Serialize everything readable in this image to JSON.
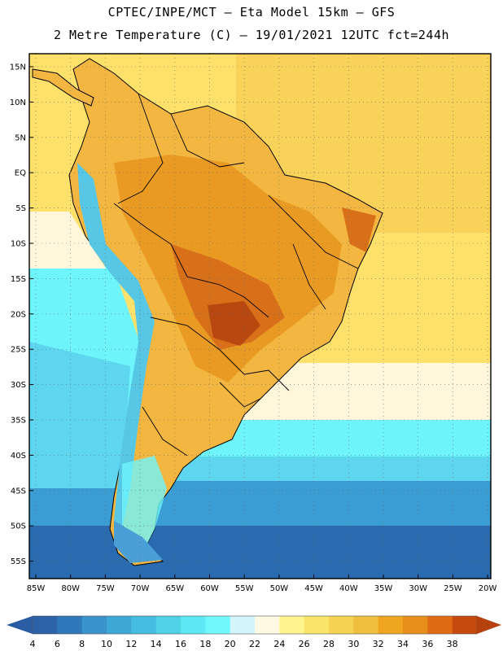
{
  "header": {
    "title_line1": "CPTEC/INPE/MCT –  Eta Model 15km – GFS",
    "title_line2": "2 Metre Temperature (C) – 19/01/2021 12UTC fct=244h"
  },
  "map": {
    "lat_labels": [
      "15N",
      "10N",
      "5N",
      "EQ",
      "5S",
      "10S",
      "15S",
      "20S",
      "25S",
      "30S",
      "35S",
      "40S",
      "45S",
      "50S",
      "55S"
    ],
    "lon_labels": [
      "85W",
      "80W",
      "75W",
      "70W",
      "65W",
      "60W",
      "55W",
      "50W",
      "45W",
      "40W",
      "35W",
      "30W",
      "25W",
      "20W"
    ],
    "colors": {
      "ocean_deep": "#2a6bb0",
      "ocean_mid": "#3a9ed4",
      "ocean_cool": "#5fd6ef",
      "ocean_cyan": "#6ef5fb",
      "ocean_pale": "#fff6dc",
      "ocean_warm": "#fde16b",
      "ocean_warmer": "#f7cf55",
      "land_warm": "#f2b641",
      "land_hot": "#e8951e",
      "land_hotter": "#d8701a",
      "land_hottest": "#b8480f",
      "andes": "#58c7e6",
      "andes_cold": "#4aa0d6",
      "border": "#000000"
    }
  },
  "colorbar": {
    "labels": [
      "4",
      "6",
      "8",
      "10",
      "12",
      "14",
      "16",
      "18",
      "20",
      "22",
      "24",
      "26",
      "28",
      "30",
      "32",
      "34",
      "36",
      "38"
    ],
    "colors": [
      "#2c62a8",
      "#2f79bb",
      "#3b93cc",
      "#3fa7d6",
      "#45bde0",
      "#4fd2e8",
      "#5ee8f3",
      "#6ff9fc",
      "#d4f6fb",
      "#fff9e3",
      "#fff48f",
      "#fbe46a",
      "#f5d252",
      "#f0bf3e",
      "#efa51f",
      "#e98d1a",
      "#df6c15",
      "#c64a0e"
    ],
    "low_color": "#2a5da3",
    "high_color": "#b5420d"
  }
}
